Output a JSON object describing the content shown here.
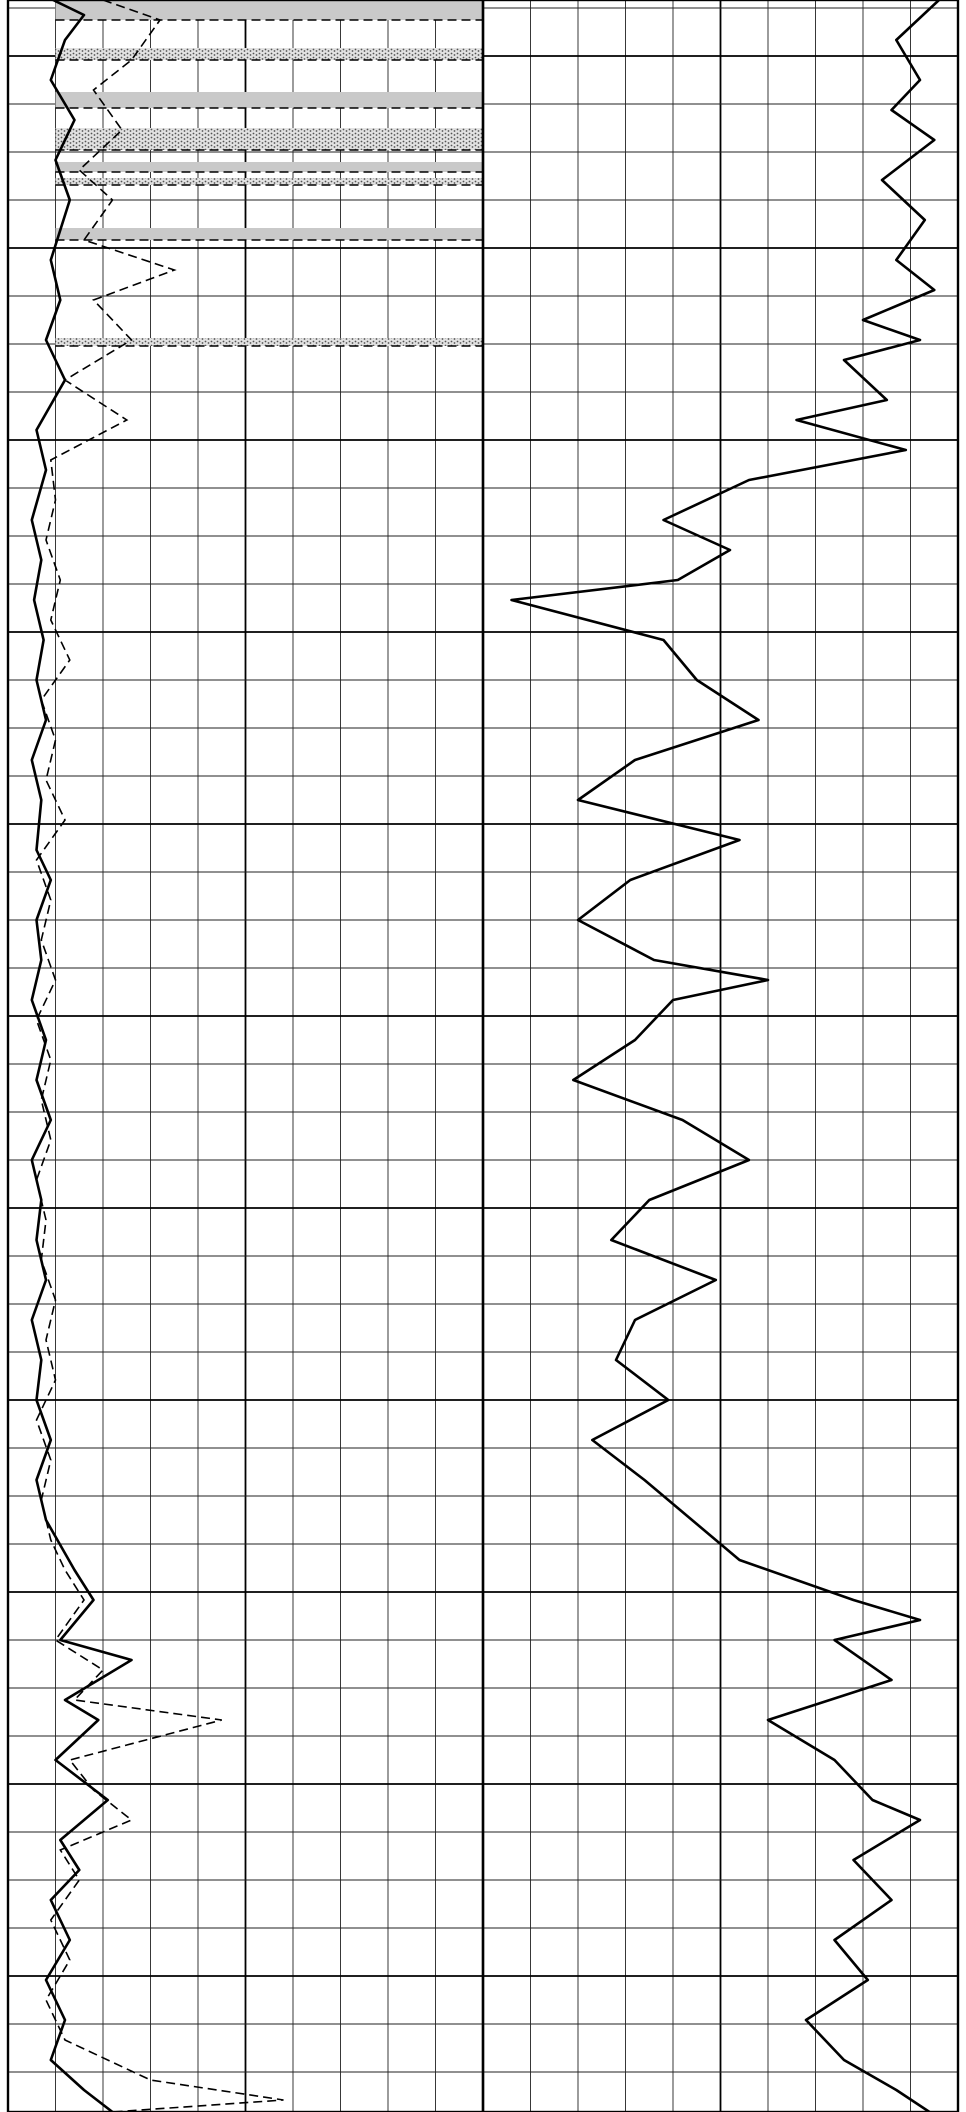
{
  "chart_data": {
    "type": "line",
    "title": "",
    "xlabel": "",
    "ylabel": "",
    "grid": true,
    "tracks": [
      {
        "id": "track-1",
        "x_range": [
          0,
          10
        ],
        "series": [
          {
            "style": "solid",
            "points": [
              [
                0.95,
                0
              ],
              [
                1.6,
                15
              ],
              [
                1.2,
                40
              ],
              [
                0.9,
                80
              ],
              [
                1.4,
                120
              ],
              [
                1.0,
                160
              ],
              [
                1.3,
                200
              ],
              [
                0.9,
                260
              ],
              [
                1.1,
                300
              ],
              [
                0.8,
                340
              ],
              [
                1.2,
                380
              ],
              [
                0.6,
                430
              ],
              [
                0.8,
                470
              ],
              [
                0.5,
                520
              ],
              [
                0.7,
                560
              ],
              [
                0.55,
                600
              ],
              [
                0.75,
                640
              ],
              [
                0.6,
                680
              ],
              [
                0.8,
                720
              ],
              [
                0.5,
                760
              ],
              [
                0.7,
                800
              ],
              [
                0.6,
                850
              ],
              [
                0.9,
                880
              ],
              [
                0.6,
                920
              ],
              [
                0.7,
                960
              ],
              [
                0.5,
                1000
              ],
              [
                0.8,
                1040
              ],
              [
                0.6,
                1080
              ],
              [
                0.9,
                1120
              ],
              [
                0.5,
                1160
              ],
              [
                0.7,
                1200
              ],
              [
                0.6,
                1240
              ],
              [
                0.8,
                1280
              ],
              [
                0.5,
                1320
              ],
              [
                0.7,
                1360
              ],
              [
                0.6,
                1400
              ],
              [
                0.9,
                1440
              ],
              [
                0.6,
                1480
              ],
              [
                0.8,
                1520
              ],
              [
                1.4,
                1570
              ],
              [
                1.8,
                1600
              ],
              [
                1.1,
                1640
              ],
              [
                2.6,
                1660
              ],
              [
                1.2,
                1700
              ],
              [
                1.9,
                1720
              ],
              [
                1.0,
                1760
              ],
              [
                2.1,
                1800
              ],
              [
                1.1,
                1840
              ],
              [
                1.5,
                1870
              ],
              [
                0.9,
                1900
              ],
              [
                1.3,
                1940
              ],
              [
                0.8,
                1980
              ],
              [
                1.2,
                2020
              ],
              [
                0.9,
                2060
              ],
              [
                1.6,
                2090
              ],
              [
                2.2,
                2112
              ]
            ]
          },
          {
            "style": "dashed",
            "points": [
              [
                2.0,
                0
              ],
              [
                3.2,
                20
              ],
              [
                2.6,
                60
              ],
              [
                1.8,
                90
              ],
              [
                2.4,
                130
              ],
              [
                1.5,
                170
              ],
              [
                2.2,
                200
              ],
              [
                1.6,
                240
              ],
              [
                3.5,
                270
              ],
              [
                1.8,
                300
              ],
              [
                2.6,
                340
              ],
              [
                1.2,
                380
              ],
              [
                2.5,
                420
              ],
              [
                0.9,
                460
              ],
              [
                1.0,
                500
              ],
              [
                0.8,
                540
              ],
              [
                1.1,
                580
              ],
              [
                0.9,
                620
              ],
              [
                1.3,
                660
              ],
              [
                0.7,
                700
              ],
              [
                1.0,
                740
              ],
              [
                0.8,
                780
              ],
              [
                1.2,
                820
              ],
              [
                0.6,
                860
              ],
              [
                0.9,
                900
              ],
              [
                0.7,
                940
              ],
              [
                1.0,
                980
              ],
              [
                0.6,
                1020
              ],
              [
                0.9,
                1060
              ],
              [
                0.7,
                1100
              ],
              [
                0.9,
                1140
              ],
              [
                0.6,
                1180
              ],
              [
                0.8,
                1220
              ],
              [
                0.7,
                1260
              ],
              [
                1.0,
                1300
              ],
              [
                0.8,
                1340
              ],
              [
                1.0,
                1380
              ],
              [
                0.6,
                1420
              ],
              [
                0.9,
                1460
              ],
              [
                0.7,
                1500
              ],
              [
                0.9,
                1540
              ],
              [
                1.2,
                1570
              ],
              [
                1.6,
                1600
              ],
              [
                1.0,
                1640
              ],
              [
                2.0,
                1670
              ],
              [
                1.4,
                1700
              ],
              [
                4.5,
                1720
              ],
              [
                1.3,
                1760
              ],
              [
                1.8,
                1790
              ],
              [
                2.6,
                1820
              ],
              [
                1.1,
                1850
              ],
              [
                1.5,
                1880
              ],
              [
                0.9,
                1920
              ],
              [
                1.3,
                1960
              ],
              [
                0.8,
                2000
              ],
              [
                1.2,
                2040
              ],
              [
                3.0,
                2080
              ],
              [
                5.8,
                2100
              ],
              [
                2.2,
                2112
              ]
            ]
          }
        ],
        "shaded_intervals": [
          [
            0,
            20
          ],
          [
            48,
            60
          ],
          [
            92,
            108
          ],
          [
            128,
            150
          ],
          [
            162,
            172
          ],
          [
            178,
            185
          ],
          [
            228,
            240
          ],
          [
            338,
            346
          ]
        ]
      },
      {
        "id": "track-2",
        "x_range": [
          0,
          10
        ],
        "series": [
          {
            "style": "solid",
            "points": [
              [
                9.6,
                0
              ],
              [
                8.7,
                40
              ],
              [
                9.2,
                80
              ],
              [
                8.6,
                110
              ],
              [
                9.5,
                140
              ],
              [
                8.4,
                180
              ],
              [
                9.3,
                220
              ],
              [
                8.7,
                260
              ],
              [
                9.5,
                290
              ],
              [
                8.0,
                320
              ],
              [
                9.2,
                340
              ],
              [
                7.6,
                360
              ],
              [
                8.5,
                400
              ],
              [
                6.6,
                420
              ],
              [
                8.9,
                450
              ],
              [
                5.6,
                480
              ],
              [
                3.8,
                520
              ],
              [
                5.2,
                550
              ],
              [
                4.1,
                580
              ],
              [
                0.6,
                600
              ],
              [
                3.8,
                640
              ],
              [
                4.5,
                680
              ],
              [
                5.8,
                720
              ],
              [
                3.2,
                760
              ],
              [
                2.0,
                800
              ],
              [
                5.4,
                840
              ],
              [
                3.1,
                880
              ],
              [
                2.0,
                920
              ],
              [
                3.6,
                960
              ],
              [
                6.0,
                980
              ],
              [
                4.0,
                1000
              ],
              [
                3.2,
                1040
              ],
              [
                1.9,
                1080
              ],
              [
                4.2,
                1120
              ],
              [
                5.6,
                1160
              ],
              [
                3.5,
                1200
              ],
              [
                2.7,
                1240
              ],
              [
                4.9,
                1280
              ],
              [
                3.2,
                1320
              ],
              [
                2.8,
                1360
              ],
              [
                3.9,
                1400
              ],
              [
                2.3,
                1440
              ],
              [
                3.4,
                1480
              ],
              [
                4.4,
                1520
              ],
              [
                5.4,
                1560
              ],
              [
                7.8,
                1600
              ],
              [
                9.2,
                1620
              ],
              [
                7.4,
                1640
              ],
              [
                8.6,
                1680
              ],
              [
                6.0,
                1720
              ],
              [
                7.4,
                1760
              ],
              [
                8.2,
                1800
              ],
              [
                9.2,
                1820
              ],
              [
                7.8,
                1860
              ],
              [
                8.6,
                1900
              ],
              [
                7.4,
                1940
              ],
              [
                8.1,
                1980
              ],
              [
                6.8,
                2020
              ],
              [
                7.6,
                2060
              ],
              [
                8.7,
                2090
              ],
              [
                9.4,
                2112
              ]
            ]
          }
        ],
        "shaded_intervals": []
      }
    ]
  }
}
